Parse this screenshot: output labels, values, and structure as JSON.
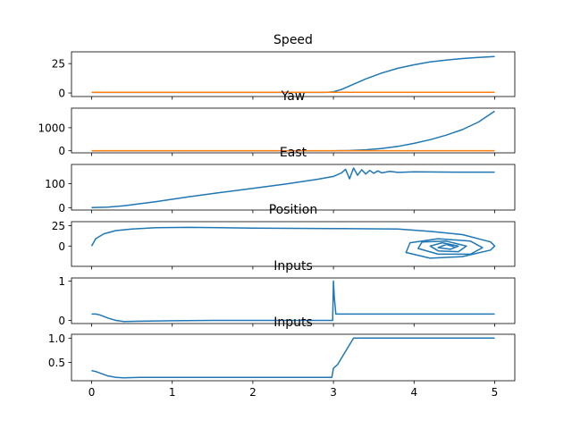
{
  "chart_data": [
    {
      "type": "line",
      "title": "Speed",
      "xlim": [
        -0.25,
        5.25
      ],
      "ylim": [
        -3,
        35
      ],
      "yticks": [
        0,
        25
      ],
      "ytick_labels": [
        "0",
        "25"
      ],
      "series": [
        {
          "color": "#1f77b4",
          "x": [
            0,
            2.9,
            3.0,
            3.1,
            3.2,
            3.4,
            3.6,
            3.8,
            4.0,
            4.2,
            4.4,
            4.6,
            4.8,
            5.0
          ],
          "y": [
            0.5,
            0.5,
            1,
            3,
            6,
            12,
            17,
            21,
            24,
            26.5,
            28,
            29.3,
            30.2,
            31
          ]
        },
        {
          "color": "#ff7f0e",
          "x": [
            0,
            5
          ],
          "y": [
            0.6,
            0.6
          ]
        }
      ]
    },
    {
      "type": "line",
      "title": "Yaw",
      "xlim": [
        -0.25,
        5.25
      ],
      "ylim": [
        -90,
        1850
      ],
      "yticks": [
        0,
        1000
      ],
      "ytick_labels": [
        "0",
        "1000"
      ],
      "series": [
        {
          "color": "#1f77b4",
          "x": [
            0,
            3.0,
            3.2,
            3.4,
            3.6,
            3.8,
            4.0,
            4.2,
            4.4,
            4.6,
            4.8,
            5.0
          ],
          "y": [
            0,
            0,
            10,
            40,
            100,
            190,
            320,
            480,
            680,
            920,
            1250,
            1720
          ]
        },
        {
          "color": "#ff7f0e",
          "x": [
            0,
            5
          ],
          "y": [
            2,
            2
          ]
        }
      ]
    },
    {
      "type": "line",
      "title": "East",
      "xlim": [
        -0.25,
        5.25
      ],
      "ylim": [
        -10,
        180
      ],
      "yticks": [
        0,
        100
      ],
      "ytick_labels": [
        "0",
        "100"
      ],
      "series": [
        {
          "color": "#1f77b4",
          "x": [
            0,
            0.2,
            0.4,
            0.8,
            1.2,
            1.6,
            2.0,
            2.4,
            2.8,
            3.0,
            3.1,
            3.15,
            3.2,
            3.25,
            3.3,
            3.35,
            3.4,
            3.45,
            3.5,
            3.55,
            3.6,
            3.7,
            3.8,
            4.0,
            4.5,
            5.0
          ],
          "y": [
            0,
            2,
            8,
            25,
            45,
            63,
            80,
            98,
            118,
            130,
            145,
            160,
            120,
            165,
            135,
            158,
            140,
            155,
            143,
            153,
            145,
            151,
            147,
            149,
            148,
            148
          ]
        }
      ]
    },
    {
      "type": "line",
      "title": "Position",
      "xlim": [
        -0.25,
        5.25
      ],
      "ylim": [
        -25,
        30
      ],
      "yticks": [
        0,
        25
      ],
      "ytick_labels": [
        "0",
        "25"
      ],
      "series": [
        {
          "color": "#1f77b4",
          "x": [
            0,
            0.05,
            0.15,
            0.3,
            0.5,
            0.8,
            1.2,
            1.6,
            2.0,
            3.0,
            3.8,
            4.2,
            4.6,
            4.95,
            5.0,
            4.95,
            4.6,
            4.2,
            3.9,
            3.95,
            4.3,
            4.7,
            4.85,
            4.7,
            4.3,
            4.05,
            4.1,
            4.4,
            4.65,
            4.55,
            4.3,
            4.2,
            4.35,
            4.55,
            4.45,
            4.3,
            4.4,
            4.5
          ],
          "y": [
            0,
            9,
            15,
            19,
            21,
            22.5,
            23,
            22.5,
            22,
            21.5,
            21,
            18,
            14,
            5,
            0,
            -5,
            -13,
            -15,
            -8,
            4,
            9,
            6,
            -2,
            -10,
            -10,
            -3,
            5,
            6,
            0,
            -7,
            -6,
            0,
            4,
            0,
            -4,
            -2,
            2,
            -1
          ]
        }
      ]
    },
    {
      "type": "line",
      "title": "Inputs",
      "xlim": [
        -0.25,
        5.25
      ],
      "ylim": [
        -0.08,
        1.08
      ],
      "yticks": [
        0,
        1
      ],
      "ytick_labels": [
        "0",
        "1"
      ],
      "series": [
        {
          "color": "#1f77b4",
          "x": [
            0,
            0.05,
            0.1,
            0.2,
            0.3,
            0.4,
            0.6,
            1.0,
            1.5,
            2.0,
            2.9,
            2.95,
            2.99,
            3.0,
            3.01,
            3.03,
            3.1,
            5.0
          ],
          "y": [
            0.16,
            0.16,
            0.14,
            0.06,
            0.0,
            -0.03,
            -0.02,
            -0.01,
            0.0,
            0.0,
            0.0,
            0.0,
            0.0,
            1.0,
            0.6,
            0.16,
            0.16,
            0.16
          ]
        }
      ]
    },
    {
      "type": "line",
      "title": "Inputs",
      "xlim": [
        -0.25,
        5.25
      ],
      "ylim": [
        0.12,
        1.08
      ],
      "yticks": [
        0.5,
        1.0
      ],
      "ytick_labels": [
        "0.5",
        "1.0"
      ],
      "series": [
        {
          "color": "#1f77b4",
          "x": [
            0,
            0.05,
            0.1,
            0.2,
            0.3,
            0.4,
            0.6,
            1.0,
            1.5,
            2.0,
            2.9,
            2.98,
            3.0,
            3.05,
            3.25,
            5.0
          ],
          "y": [
            0.33,
            0.31,
            0.28,
            0.22,
            0.19,
            0.18,
            0.19,
            0.19,
            0.19,
            0.19,
            0.19,
            0.19,
            0.38,
            0.45,
            1.0,
            1.0
          ]
        }
      ]
    }
  ],
  "shared_x": {
    "xticks": [
      0,
      1,
      2,
      3,
      4,
      5
    ],
    "xtick_labels": [
      "0",
      "1",
      "2",
      "3",
      "4",
      "5"
    ]
  }
}
